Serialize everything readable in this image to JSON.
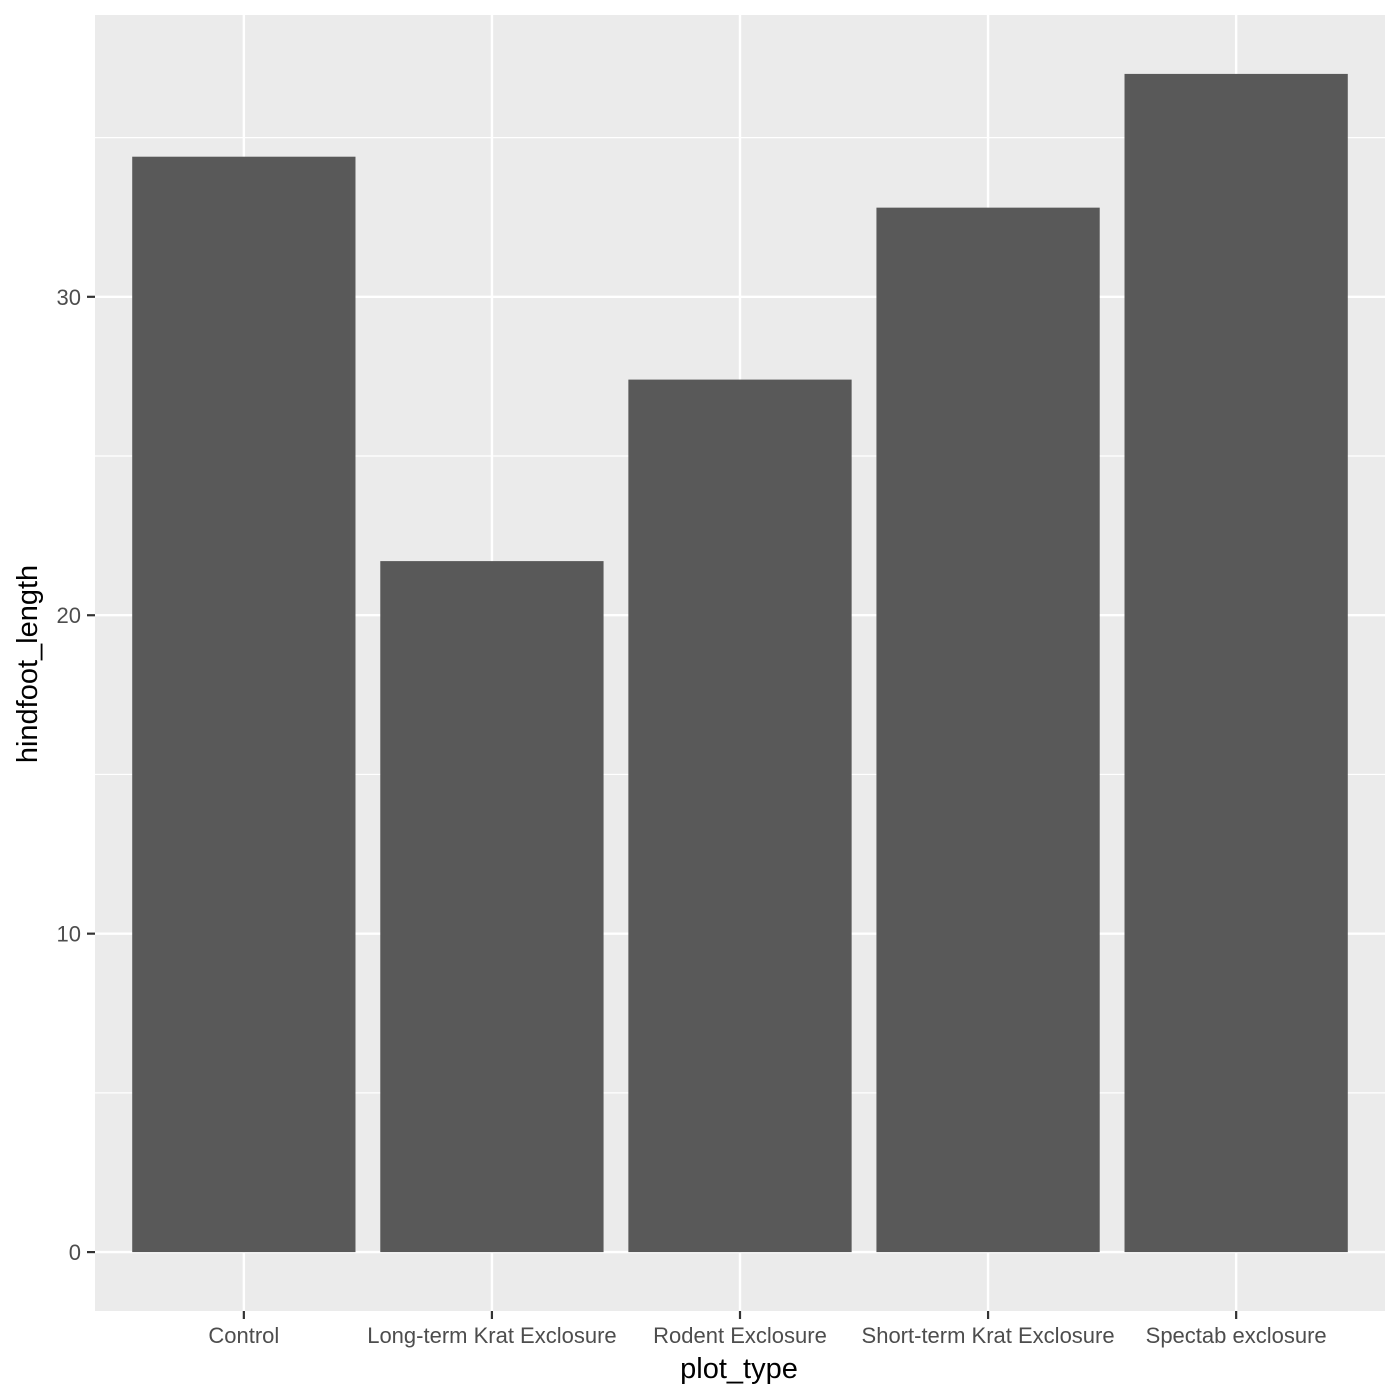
{
  "chart_data": {
    "type": "bar",
    "title": "",
    "xlabel": "plot_type",
    "ylabel": "hindfoot_length",
    "categories": [
      "Control",
      "Long-term Krat Exclosure",
      "Rodent Exclosure",
      "Short-term Krat Exclosure",
      "Spectab exclosure"
    ],
    "values": [
      34.4,
      21.7,
      27.4,
      32.8,
      37.0
    ],
    "ylim": [
      -1.85,
      38.85
    ],
    "yticks": [
      0,
      10,
      20,
      30
    ],
    "ytick_labels": [
      "0",
      "10",
      "20",
      "30"
    ],
    "grid": true,
    "legend": "none",
    "colors": {
      "panel_background": "#ebebeb",
      "grid_line": "#ffffff",
      "bar_fill": "#595959",
      "tick_mark": "#333333",
      "tick_label": "#4d4d4d",
      "axis_title": "#000000"
    }
  }
}
